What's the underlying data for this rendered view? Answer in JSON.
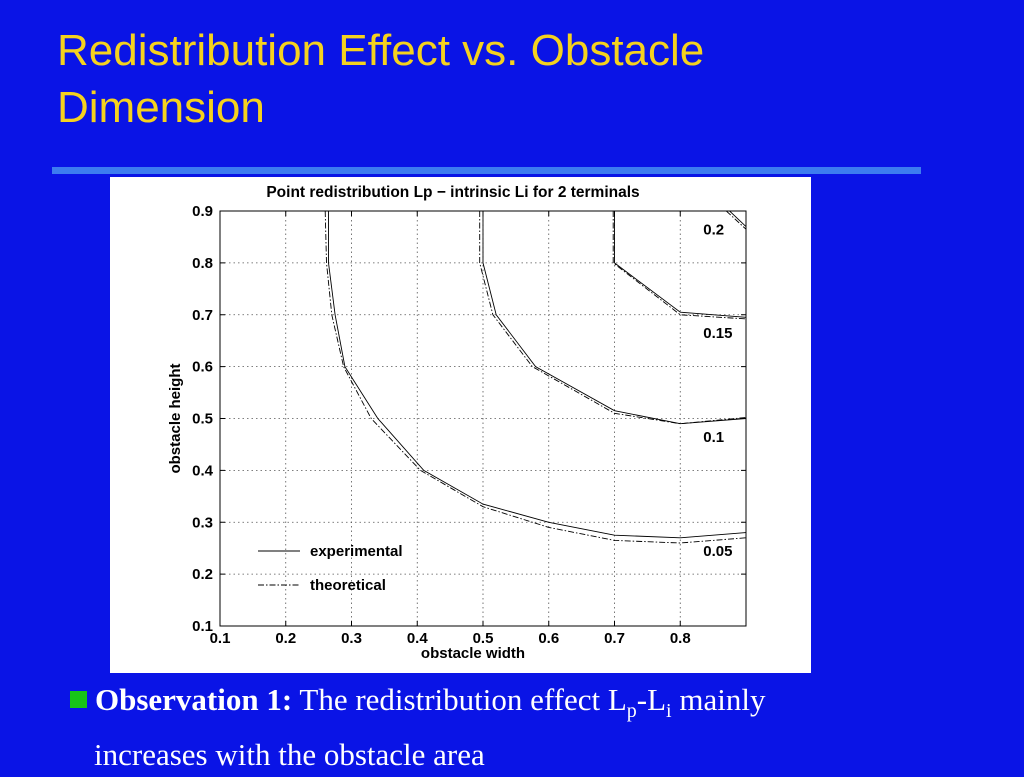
{
  "slide": {
    "title_line1": "Redistribution Effect vs. Obstacle",
    "title_line2": "Dimension",
    "accent_color": "#f5d21e",
    "background_color": "#0a14e6"
  },
  "bullet": {
    "icon": "green-square-bullet",
    "color": "#17c417",
    "label": "Observation 1:",
    "text_before": " The redistribution effect L",
    "sub_p": "p",
    "dash": "-L",
    "sub_i": "i",
    "text_after": " mainly",
    "line2": "increases with the obstacle area"
  },
  "chart_data": {
    "type": "line",
    "title": "Point redistribution Lp − intrinsic Li for 2 terminals",
    "xlabel": "obstacle width",
    "ylabel": "obstacle height",
    "xlim": [
      0.1,
      0.9
    ],
    "ylim": [
      0.1,
      0.9
    ],
    "xticks": [
      "0.1",
      "0.2",
      "0.3",
      "0.4",
      "0.5",
      "0.6",
      "0.7",
      "0.8"
    ],
    "yticks": [
      "0.1",
      "0.2",
      "0.3",
      "0.4",
      "0.5",
      "0.6",
      "0.7",
      "0.8",
      "0.9"
    ],
    "grid": true,
    "legend_position": "bottom-left",
    "legend": [
      {
        "name": "experimental",
        "style": "solid"
      },
      {
        "name": "theoretical",
        "style": "dashdot"
      }
    ],
    "contours": [
      {
        "level": "0.05",
        "experimental": [
          [
            0.265,
            0.9
          ],
          [
            0.265,
            0.8
          ],
          [
            0.275,
            0.7
          ],
          [
            0.29,
            0.6
          ],
          [
            0.34,
            0.5
          ],
          [
            0.41,
            0.4
          ],
          [
            0.5,
            0.335
          ],
          [
            0.6,
            0.3
          ],
          [
            0.7,
            0.275
          ],
          [
            0.8,
            0.27
          ],
          [
            0.9,
            0.28
          ]
        ],
        "theoretical": [
          [
            0.26,
            0.9
          ],
          [
            0.262,
            0.8
          ],
          [
            0.27,
            0.7
          ],
          [
            0.288,
            0.6
          ],
          [
            0.33,
            0.5
          ],
          [
            0.405,
            0.4
          ],
          [
            0.5,
            0.33
          ],
          [
            0.6,
            0.29
          ],
          [
            0.7,
            0.265
          ],
          [
            0.8,
            0.26
          ],
          [
            0.9,
            0.27
          ]
        ]
      },
      {
        "level": "0.1",
        "experimental": [
          [
            0.5,
            0.9
          ],
          [
            0.5,
            0.8
          ],
          [
            0.52,
            0.7
          ],
          [
            0.58,
            0.6
          ],
          [
            0.7,
            0.515
          ],
          [
            0.8,
            0.49
          ],
          [
            0.9,
            0.5
          ]
        ],
        "theoretical": [
          [
            0.495,
            0.9
          ],
          [
            0.495,
            0.8
          ],
          [
            0.515,
            0.7
          ],
          [
            0.575,
            0.6
          ],
          [
            0.7,
            0.51
          ],
          [
            0.8,
            0.49
          ],
          [
            0.9,
            0.502
          ]
        ]
      },
      {
        "level": "0.15",
        "experimental": [
          [
            0.7,
            0.9
          ],
          [
            0.7,
            0.8
          ],
          [
            0.8,
            0.705
          ],
          [
            0.9,
            0.695
          ]
        ],
        "theoretical": [
          [
            0.698,
            0.9
          ],
          [
            0.698,
            0.8
          ],
          [
            0.8,
            0.7
          ],
          [
            0.9,
            0.692
          ]
        ]
      },
      {
        "level": "0.2",
        "experimental": [
          [
            0.875,
            0.9
          ],
          [
            0.9,
            0.87
          ]
        ],
        "theoretical": [
          [
            0.87,
            0.9
          ],
          [
            0.9,
            0.865
          ]
        ]
      }
    ],
    "level_labels": [
      {
        "text": "0.2",
        "x": 0.835,
        "y": 0.855
      },
      {
        "text": "0.15",
        "x": 0.835,
        "y": 0.655
      },
      {
        "text": "0.1",
        "x": 0.835,
        "y": 0.455
      },
      {
        "text": "0.05",
        "x": 0.835,
        "y": 0.235
      }
    ]
  }
}
